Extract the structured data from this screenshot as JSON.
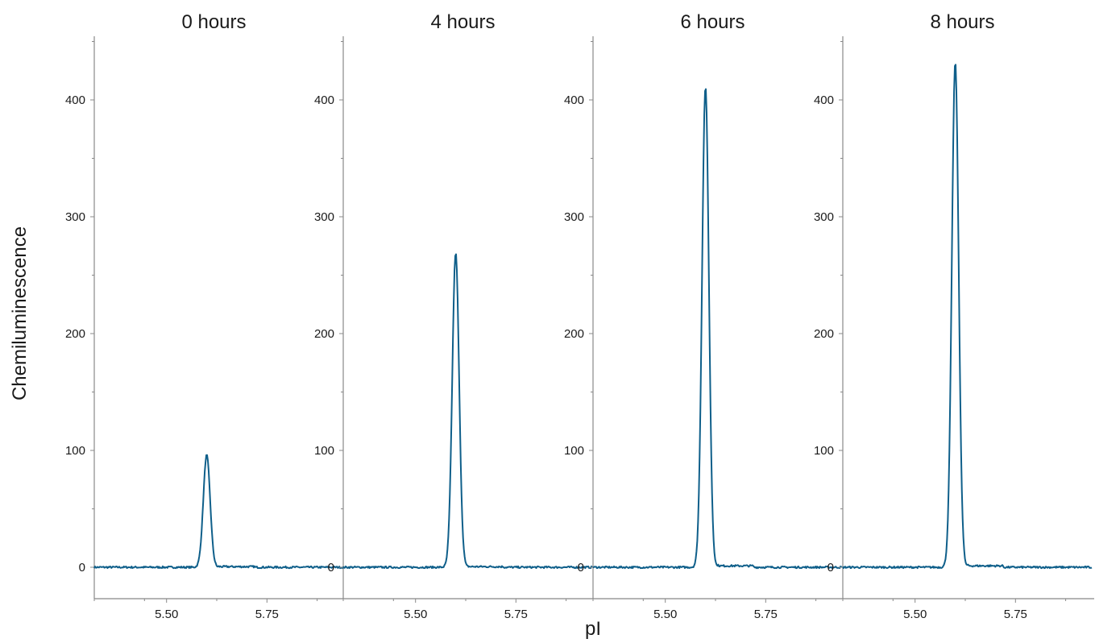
{
  "chart_data": {
    "type": "line",
    "xlabel": "pI",
    "ylabel": "Chemiluminescence",
    "xlim": [
      5.32,
      5.94
    ],
    "ylim": [
      -25,
      455
    ],
    "yticks": [
      0,
      100,
      200,
      300,
      400
    ],
    "xticks": [
      5.5,
      5.75
    ],
    "xtick_labels": [
      "5.50",
      "5.75"
    ],
    "ytick_labels": [
      "0",
      "100",
      "200",
      "300",
      "400"
    ],
    "line_color": "#0f5f8a",
    "axis_color": "#888888",
    "peak_center_pI": 5.6,
    "panels": [
      {
        "title": "0 hours",
        "peak_height": 96
      },
      {
        "title": "4 hours",
        "peak_height": 269
      },
      {
        "title": "6 hours",
        "peak_height": 411
      },
      {
        "title": "8 hours",
        "peak_height": 432
      }
    ]
  }
}
